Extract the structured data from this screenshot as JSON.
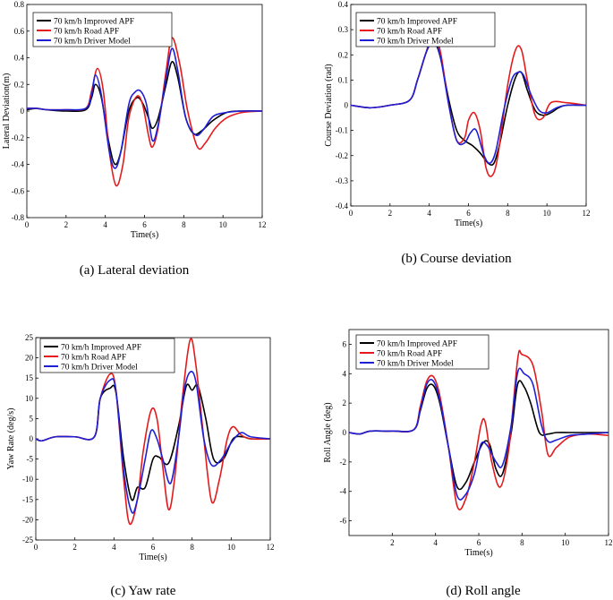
{
  "chart_data": [
    {
      "type": "line",
      "caption": "(a)  Lateral deviation",
      "xlabel": "Time(s)",
      "ylabel": "Lateral Deviation(m)",
      "xlim": [
        0,
        12
      ],
      "ylim": [
        -0.8,
        0.8
      ],
      "xticks": [
        0,
        2,
        4,
        6,
        8,
        10,
        12
      ],
      "yticks": [
        -0.8,
        -0.6,
        -0.4,
        -0.2,
        0,
        0.2,
        0.4,
        0.6,
        0.8
      ],
      "ytick_labels": [
        "-0.8",
        "-0.6",
        "-0.4",
        "-0.2",
        "0",
        "0.2",
        "0.4",
        "0.6",
        "0.8"
      ],
      "series": [
        {
          "name": "70 km/h Improved APF",
          "color": "#000000",
          "x": [
            0,
            0.5,
            1,
            2,
            3,
            3.3,
            3.5,
            3.8,
            4.2,
            4.5,
            4.8,
            5.2,
            5.6,
            5.9,
            6.2,
            6.4,
            6.7,
            7.1,
            7.4,
            7.7,
            8.1,
            8.5,
            8.9,
            9.5,
            10.2,
            11,
            12
          ],
          "y": [
            0.01,
            0.02,
            0.01,
            0,
            0.01,
            0.1,
            0.2,
            0.1,
            -0.25,
            -0.4,
            -0.3,
            0,
            0.1,
            0.06,
            -0.05,
            -0.13,
            -0.05,
            0.2,
            0.37,
            0.25,
            -0.05,
            -0.17,
            -0.15,
            -0.07,
            -0.01,
            0,
            0
          ]
        },
        {
          "name": "70 km/h Road APF",
          "color": "#e41a1c",
          "x": [
            0,
            0.5,
            1,
            2,
            3,
            3.3,
            3.6,
            3.9,
            4.2,
            4.55,
            4.9,
            5.2,
            5.6,
            5.9,
            6.2,
            6.4,
            6.7,
            7.1,
            7.4,
            7.8,
            8.2,
            8.7,
            9.1,
            9.6,
            10.2,
            11,
            12
          ],
          "y": [
            0.02,
            0.02,
            0.01,
            0.01,
            0.02,
            0.15,
            0.32,
            0.15,
            -0.3,
            -0.56,
            -0.4,
            -0.05,
            0.11,
            0.05,
            -0.18,
            -0.27,
            -0.12,
            0.3,
            0.55,
            0.35,
            0,
            -0.27,
            -0.24,
            -0.13,
            -0.05,
            -0.01,
            0
          ]
        },
        {
          "name": "70 km/h Driver Model",
          "color": "#1f1fd6",
          "x": [
            0,
            0.5,
            1,
            2,
            3,
            3.3,
            3.5,
            3.8,
            4.2,
            4.5,
            4.8,
            5.2,
            5.5,
            5.8,
            6.1,
            6.4,
            6.7,
            7.1,
            7.4,
            7.7,
            8.1,
            8.6,
            9.0,
            9.5,
            10.2,
            11,
            12
          ],
          "y": [
            0.02,
            0.02,
            0.01,
            0.01,
            0.02,
            0.12,
            0.27,
            0.12,
            -0.3,
            -0.43,
            -0.3,
            0.05,
            0.14,
            0.15,
            0.05,
            -0.22,
            -0.1,
            0.25,
            0.47,
            0.3,
            -0.05,
            -0.18,
            -0.14,
            -0.04,
            -0.01,
            0,
            0
          ]
        }
      ]
    },
    {
      "type": "line",
      "caption": "(b)  Course deviation",
      "xlabel": "Time(s)",
      "ylabel": "Course Deviation  (rad)",
      "xlim": [
        0,
        12
      ],
      "ylim": [
        -0.4,
        0.4
      ],
      "xticks": [
        0,
        2,
        4,
        6,
        8,
        10,
        12
      ],
      "yticks": [
        -0.4,
        -0.3,
        -0.2,
        -0.1,
        0,
        0.1,
        0.2,
        0.3,
        0.4
      ],
      "ytick_labels": [
        "-0.4",
        "-0.3",
        "-0.2",
        "-0.1",
        "0",
        "0.1",
        "0.2",
        "0.3",
        "0.4"
      ],
      "series": [
        {
          "name": "70 km/h Improved APF",
          "color": "#000000",
          "x": [
            0,
            1,
            2,
            3,
            3.4,
            3.8,
            4.1,
            4.3,
            4.6,
            5.0,
            5.4,
            5.8,
            6.2,
            6.6,
            7.0,
            7.3,
            7.6,
            8.0,
            8.4,
            8.7,
            9.0,
            9.4,
            9.8,
            10.2,
            10.6,
            11,
            12
          ],
          "y": [
            0,
            -0.01,
            0,
            0.02,
            0.1,
            0.2,
            0.25,
            0.25,
            0.18,
            0.02,
            -0.1,
            -0.14,
            -0.16,
            -0.19,
            -0.23,
            -0.23,
            -0.15,
            0.0,
            0.11,
            0.13,
            0.06,
            -0.02,
            -0.04,
            -0.03,
            -0.01,
            0,
            0
          ]
        },
        {
          "name": "70 km/h Road APF",
          "color": "#e41a1c",
          "x": [
            0,
            1,
            2,
            3,
            3.4,
            3.8,
            4.1,
            4.3,
            4.6,
            5.0,
            5.4,
            5.8,
            6.0,
            6.3,
            6.6,
            6.9,
            7.2,
            7.5,
            8.0,
            8.4,
            8.7,
            9.0,
            9.4,
            9.8,
            10.2,
            11,
            12
          ],
          "y": [
            0,
            -0.01,
            0,
            0.02,
            0.1,
            0.2,
            0.27,
            0.28,
            0.2,
            0.0,
            -0.14,
            -0.13,
            -0.06,
            -0.03,
            -0.1,
            -0.25,
            -0.28,
            -0.2,
            0.08,
            0.22,
            0.22,
            0.1,
            -0.04,
            -0.05,
            0.01,
            0.01,
            0
          ]
        },
        {
          "name": "70 km/h Driver Model",
          "color": "#1f1fd6",
          "x": [
            0,
            1,
            2,
            3,
            3.4,
            3.8,
            4.1,
            4.3,
            4.6,
            5.0,
            5.4,
            5.8,
            6.1,
            6.4,
            6.8,
            7.1,
            7.4,
            7.8,
            8.2,
            8.5,
            8.8,
            9.2,
            9.6,
            10.0,
            10.5,
            11,
            12
          ],
          "y": [
            0,
            -0.01,
            0,
            0.02,
            0.1,
            0.2,
            0.26,
            0.26,
            0.18,
            0.0,
            -0.14,
            -0.15,
            -0.11,
            -0.1,
            -0.2,
            -0.23,
            -0.18,
            -0.02,
            0.1,
            0.13,
            0.12,
            0.04,
            -0.02,
            -0.03,
            -0.01,
            0,
            0
          ]
        }
      ]
    },
    {
      "type": "line",
      "caption": "(c)  Yaw rate",
      "xlabel": "Time(s)",
      "ylabel": "Yaw Rate (deg/s)",
      "xlim": [
        0,
        12
      ],
      "ylim": [
        -25,
        25
      ],
      "xticks": [
        0,
        2,
        4,
        6,
        8,
        10,
        12
      ],
      "yticks": [
        -25,
        -20,
        -15,
        -10,
        -5,
        0,
        5,
        10,
        15,
        20,
        25
      ],
      "ytick_labels": [
        "-25",
        "-20",
        "-15",
        "-10",
        "-5",
        "0",
        "5",
        "10",
        "15",
        "20",
        "25"
      ],
      "series": [
        {
          "name": "70 km/h Improved APF",
          "color": "#000000",
          "x": [
            0,
            0.3,
            1,
            2,
            3,
            3.3,
            3.8,
            4.1,
            4.5,
            4.9,
            5.2,
            5.6,
            6.0,
            6.3,
            6.8,
            7.3,
            7.7,
            8.0,
            8.3,
            8.7,
            9.1,
            9.6,
            10.1,
            10.6,
            11,
            12
          ],
          "y": [
            0,
            -0.5,
            0.5,
            0.5,
            0.5,
            10,
            12.5,
            11.5,
            -5,
            -15,
            -12,
            -12,
            -5,
            -4.5,
            -6,
            3,
            13,
            12,
            13,
            5,
            -5,
            -5,
            0,
            0.5,
            0,
            0
          ]
        },
        {
          "name": "70 km/h Road APF",
          "color": "#e41a1c",
          "x": [
            0,
            0.3,
            1,
            2,
            3,
            3.3,
            3.8,
            4.1,
            4.5,
            4.8,
            5.2,
            5.5,
            5.9,
            6.2,
            6.5,
            6.8,
            7.1,
            7.5,
            7.9,
            8.2,
            8.6,
            9.0,
            9.4,
            9.8,
            10.1,
            10.5,
            11,
            12
          ],
          "y": [
            0,
            -0.5,
            0.5,
            0.5,
            0.5,
            10,
            16,
            12,
            -10,
            -21,
            -15,
            -3,
            7,
            5,
            -7,
            -17.5,
            -10,
            10,
            24.5,
            18,
            0,
            -15.5,
            -10,
            0,
            3,
            1,
            0,
            0
          ]
        },
        {
          "name": "70 km/h Driver Model",
          "color": "#1f1fd6",
          "x": [
            0,
            0.3,
            1,
            2,
            3,
            3.3,
            3.8,
            4.1,
            4.5,
            4.9,
            5.2,
            5.6,
            5.9,
            6.2,
            6.5,
            6.9,
            7.3,
            7.6,
            7.9,
            8.2,
            8.6,
            9.0,
            9.5,
            10.0,
            10.5,
            11,
            12
          ],
          "y": [
            0,
            -0.5,
            0.5,
            0.5,
            0.5,
            10,
            14.5,
            12,
            -8,
            -18,
            -15,
            -5,
            2,
            0,
            -5,
            -11,
            0,
            12,
            16.5,
            14,
            0,
            -6.5,
            -5,
            -1,
            1.5,
            0.5,
            0
          ]
        }
      ]
    },
    {
      "type": "line",
      "caption": "(d)  Roll angle",
      "xlabel": "Time(s)",
      "ylabel": "Roll Angle (deg)",
      "xlim": [
        0,
        12
      ],
      "ylim": [
        -7,
        7
      ],
      "xticks": [
        2,
        4,
        6,
        8,
        10,
        12
      ],
      "yticks": [
        -6,
        -4,
        -2,
        0,
        2,
        4,
        6
      ],
      "ytick_labels": [
        "-6",
        "-4",
        "-2",
        "0",
        "2",
        "4",
        "6"
      ],
      "series": [
        {
          "name": "70 km/h Improved APF",
          "color": "#000000",
          "x": [
            0,
            0.5,
            1,
            2,
            3,
            3.3,
            3.6,
            3.9,
            4.2,
            4.6,
            5.0,
            5.4,
            5.8,
            6.2,
            6.5,
            6.8,
            7.1,
            7.5,
            7.8,
            8.1,
            8.4,
            8.8,
            9.2,
            9.6,
            10.2,
            11,
            12
          ],
          "y": [
            0,
            -0.1,
            0.1,
            0.1,
            0.2,
            1.5,
            3,
            3.2,
            2,
            -1,
            -3.7,
            -3.4,
            -2,
            -0.7,
            -0.8,
            -2.5,
            -2.8,
            0,
            3.3,
            3.1,
            2,
            0,
            -0.1,
            0,
            0,
            0,
            0
          ]
        },
        {
          "name": "70 km/h Road APF",
          "color": "#e41a1c",
          "x": [
            0,
            0.5,
            1,
            2,
            3,
            3.3,
            3.6,
            3.9,
            4.2,
            4.6,
            5.0,
            5.4,
            5.8,
            6.1,
            6.3,
            6.6,
            7.0,
            7.4,
            7.8,
            8.0,
            8.5,
            8.9,
            9.2,
            9.6,
            10.2,
            11,
            12
          ],
          "y": [
            0,
            -0.1,
            0.1,
            0.1,
            0.2,
            1.8,
            3.5,
            3.8,
            2.5,
            -1,
            -5,
            -4.5,
            -2,
            0.5,
            0.7,
            -2,
            -3.7,
            -1,
            5,
            5.3,
            4.6,
            1.5,
            -1.5,
            -1,
            -0.3,
            -0.1,
            -0.2
          ]
        },
        {
          "name": "70 km/h Driver Model",
          "color": "#1f1fd6",
          "x": [
            0,
            0.5,
            1,
            2,
            3,
            3.3,
            3.6,
            3.9,
            4.2,
            4.6,
            5.0,
            5.4,
            5.8,
            6.1,
            6.4,
            6.8,
            7.1,
            7.5,
            7.8,
            8.1,
            8.5,
            8.9,
            9.2,
            9.6,
            10.2,
            11,
            12
          ],
          "y": [
            0,
            -0.1,
            0.1,
            0.1,
            0.2,
            1.6,
            3.3,
            3.5,
            2.2,
            -1,
            -4.3,
            -4.2,
            -2.8,
            -0.8,
            -0.9,
            -2,
            -2.2,
            0.5,
            4.1,
            4,
            3.3,
            0.5,
            -0.6,
            -0.5,
            -0.2,
            -0.1,
            0
          ]
        }
      ]
    }
  ]
}
